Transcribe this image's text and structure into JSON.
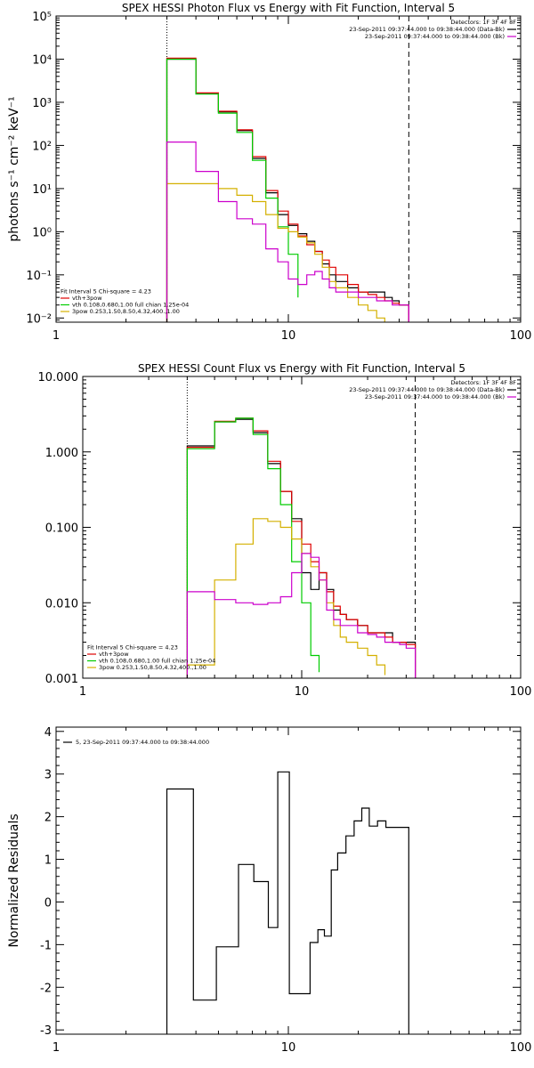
{
  "chart_data": [
    {
      "type": "line",
      "title": "SPEX HESSI Photon Flux vs Energy with Fit Function, Interval 5",
      "xlabel": "",
      "ylabel": "photons s⁻¹ cm⁻² keV⁻¹",
      "xscale": "log",
      "yscale": "log",
      "xlim": [
        1,
        100
      ],
      "ylim": [
        0.008,
        100000
      ],
      "xticks": [
        {
          "v": 1,
          "label": "1"
        },
        {
          "v": 10,
          "label": "10"
        },
        {
          "v": 100,
          "label": "100"
        }
      ],
      "yticks": [
        {
          "v": 0.01,
          "label": "10⁻²"
        },
        {
          "v": 0.1,
          "label": "10⁻¹"
        },
        {
          "v": 1,
          "label": "10⁰"
        },
        {
          "v": 10,
          "label": "10¹"
        },
        {
          "v": 100,
          "label": "10²"
        },
        {
          "v": 1000,
          "label": "10³"
        },
        {
          "v": 10000,
          "label": "10⁴"
        },
        {
          "v": 100000,
          "label": "10⁵"
        }
      ],
      "vlines": [
        {
          "x": 3.0,
          "style": "dotted",
          "color": "#000000"
        },
        {
          "x": 33.0,
          "style": "dashed",
          "color": "#000000"
        }
      ],
      "legend_topright": [
        {
          "text": "Detectors: 1F 3F 4F 8F",
          "color": "#000000"
        },
        {
          "text": "23-Sep-2011 09:37:44.000 to 09:38:44.000 (Data-Bk)",
          "color": "#000000"
        },
        {
          "text": "23-Sep-2011 09:37:44.000 to 09:38:44.000 (Bk)",
          "color": "#cc00cc"
        }
      ],
      "legend_bottomleft": [
        {
          "text": "Fit Interval 5   Chi-square = 4.23",
          "color": "#000000"
        },
        {
          "text": "vth+3pow",
          "color": "#e00000"
        },
        {
          "text": "vth 0.108,0.680,1.00  full chian 1.25e-04",
          "color": "#00cc00"
        },
        {
          "text": "3pow 0.253,1.50,8.50,4.32,400.,1.00",
          "color": "#d4b000"
        }
      ],
      "series": [
        {
          "name": "Data-Bk",
          "color": "#000000",
          "edges": [
            3.0,
            4.0,
            5.0,
            6.0,
            7.0,
            8.0,
            9.0,
            10.0,
            11.0,
            12.0,
            13.0,
            14.0,
            15.0,
            16.0,
            18.0,
            20.0,
            22.0,
            24.0,
            26.0,
            28.0,
            30.0,
            33.0
          ],
          "values": [
            10000,
            1600,
            600,
            220,
            50,
            8,
            2.5,
            1.4,
            0.9,
            0.6,
            0.35,
            0.18,
            0.1,
            0.07,
            0.05,
            0.04,
            0.04,
            0.04,
            0.03,
            0.025,
            0.02
          ]
        },
        {
          "name": "vth+3pow",
          "color": "#e00000",
          "edges": [
            3.0,
            4.0,
            5.0,
            6.0,
            7.0,
            8.0,
            9.0,
            10.0,
            11.0,
            12.0,
            13.0,
            14.0,
            15.0,
            16.0,
            18.0,
            20.0,
            22.0,
            24.0,
            26.0,
            28.0,
            30.0,
            33.0
          ],
          "values": [
            10500,
            1650,
            620,
            230,
            55,
            9,
            3,
            1.5,
            0.8,
            0.5,
            0.35,
            0.22,
            0.15,
            0.1,
            0.06,
            0.04,
            0.035,
            0.03,
            0.025,
            0.022,
            0.02
          ]
        },
        {
          "name": "vth",
          "color": "#00cc00",
          "edges": [
            3.0,
            4.0,
            5.0,
            6.0,
            7.0,
            8.0,
            9.0,
            10.0,
            11.0
          ],
          "values": [
            10000,
            1550,
            560,
            200,
            45,
            6,
            1.3,
            0.3,
            0.03
          ]
        },
        {
          "name": "3pow",
          "color": "#d4b000",
          "edges": [
            3.0,
            4.0,
            5.0,
            6.0,
            7.0,
            8.0,
            9.0,
            10.0,
            11.0,
            12.0,
            13.0,
            14.0,
            15.0,
            16.0,
            18.0,
            20.0,
            22.0,
            24.0,
            26.0
          ],
          "values": [
            13,
            13,
            10,
            7,
            5,
            2.5,
            1.2,
            1.0,
            0.75,
            0.55,
            0.3,
            0.15,
            0.07,
            0.05,
            0.03,
            0.02,
            0.015,
            0.01,
            0.007
          ]
        },
        {
          "name": "Bk",
          "color": "#cc00cc",
          "edges": [
            3.0,
            4.0,
            5.0,
            6.0,
            7.0,
            8.0,
            9.0,
            10.0,
            11.0,
            12.0,
            13.0,
            14.0,
            15.0,
            16.0,
            18.0,
            20.0,
            22.0,
            24.0,
            26.0,
            28.0,
            30.0,
            33.0
          ],
          "values": [
            120,
            25,
            5,
            2,
            1.5,
            0.4,
            0.2,
            0.08,
            0.06,
            0.1,
            0.12,
            0.08,
            0.05,
            0.04,
            0.04,
            0.03,
            0.03,
            0.025,
            0.025,
            0.02,
            0.02
          ]
        }
      ]
    },
    {
      "type": "line",
      "title": "SPEX HESSI Count Flux vs Energy with Fit Function, Interval 5",
      "xlabel": "",
      "ylabel": "",
      "xscale": "log",
      "yscale": "log",
      "xlim": [
        1,
        100
      ],
      "ylim": [
        0.001,
        10
      ],
      "xticks": [
        {
          "v": 1,
          "label": "1"
        },
        {
          "v": 10,
          "label": "10"
        },
        {
          "v": 100,
          "label": "100"
        }
      ],
      "yticks": [
        {
          "v": 0.001,
          "label": "0.001"
        },
        {
          "v": 0.01,
          "label": "0.010"
        },
        {
          "v": 0.1,
          "label": "0.100"
        },
        {
          "v": 1,
          "label": "1.000"
        },
        {
          "v": 10,
          "label": "10.000"
        }
      ],
      "vlines": [
        {
          "x": 3.0,
          "style": "dotted",
          "color": "#000000"
        },
        {
          "x": 33.0,
          "style": "dashed",
          "color": "#000000"
        }
      ],
      "legend_topright": [
        {
          "text": "Detectors: 1F 3F 4F 8F",
          "color": "#000000"
        },
        {
          "text": "23-Sep-2011 09:37:44.000 to 09:38:44.000 (Data-Bk)",
          "color": "#000000"
        },
        {
          "text": "23-Sep-2011 09:37:44.000 to 09:38:44.000 (Bk)",
          "color": "#cc00cc"
        }
      ],
      "legend_bottomleft": [
        {
          "text": "Fit Interval 5   Chi-square = 4.23",
          "color": "#000000"
        },
        {
          "text": "vth+3pow",
          "color": "#e00000"
        },
        {
          "text": "vth 0.108,0.680,1.00  full chian 1.25e-04",
          "color": "#00cc00"
        },
        {
          "text": "3pow 0.253,1.50,8.50,4.32,400.,1.00",
          "color": "#d4b000"
        }
      ],
      "series": [
        {
          "name": "Data-Bk",
          "color": "#000000",
          "edges": [
            3.0,
            4.0,
            5.0,
            6.0,
            7.0,
            8.0,
            9.0,
            10.0,
            11.0,
            12.0,
            13.0,
            14.0,
            15.0,
            16.0,
            18.0,
            20.0,
            22.0,
            24.0,
            26.0,
            28.0,
            30.0,
            33.0
          ],
          "values": [
            1.2,
            2.5,
            2.7,
            1.8,
            0.7,
            0.3,
            0.13,
            0.025,
            0.015,
            0.025,
            0.015,
            0.008,
            0.007,
            0.006,
            0.005,
            0.004,
            0.004,
            0.004,
            0.003,
            0.003,
            0.003
          ]
        },
        {
          "name": "vth+3pow",
          "color": "#e00000",
          "edges": [
            3.0,
            4.0,
            5.0,
            6.0,
            7.0,
            8.0,
            9.0,
            10.0,
            11.0,
            12.0,
            13.0,
            14.0,
            15.0,
            16.0,
            18.0,
            20.0,
            22.0,
            24.0,
            26.0,
            28.0,
            30.0,
            33.0
          ],
          "values": [
            1.15,
            2.55,
            2.8,
            1.9,
            0.75,
            0.3,
            0.12,
            0.06,
            0.035,
            0.025,
            0.014,
            0.009,
            0.007,
            0.006,
            0.005,
            0.004,
            0.004,
            0.0035,
            0.003,
            0.003,
            0.0028
          ]
        },
        {
          "name": "vth",
          "color": "#00cc00",
          "edges": [
            3.0,
            4.0,
            5.0,
            6.0,
            7.0,
            8.0,
            9.0,
            10.0,
            11.0,
            12.0
          ],
          "values": [
            1.1,
            2.5,
            2.8,
            1.7,
            0.6,
            0.2,
            0.035,
            0.01,
            0.002,
            0.0012
          ]
        },
        {
          "name": "3pow",
          "color": "#d4b000",
          "edges": [
            3.0,
            4.0,
            5.0,
            6.0,
            7.0,
            8.0,
            9.0,
            10.0,
            11.0,
            12.0,
            13.0,
            14.0,
            15.0,
            16.0,
            18.0,
            20.0,
            22.0,
            24.0
          ],
          "values": [
            0.0015,
            0.02,
            0.06,
            0.13,
            0.12,
            0.1,
            0.07,
            0.045,
            0.03,
            0.02,
            0.01,
            0.005,
            0.0035,
            0.003,
            0.0025,
            0.002,
            0.0015,
            0.0011
          ]
        },
        {
          "name": "Bk",
          "color": "#cc00cc",
          "edges": [
            3.0,
            4.0,
            5.0,
            6.0,
            7.0,
            8.0,
            9.0,
            10.0,
            11.0,
            12.0,
            13.0,
            14.0,
            15.0,
            16.0,
            18.0,
            20.0,
            22.0,
            24.0,
            26.0,
            28.0,
            30.0,
            33.0
          ],
          "values": [
            0.014,
            0.011,
            0.01,
            0.0095,
            0.01,
            0.012,
            0.025,
            0.045,
            0.04,
            0.02,
            0.008,
            0.006,
            0.005,
            0.005,
            0.004,
            0.0038,
            0.0035,
            0.003,
            0.003,
            0.0028,
            0.0025
          ]
        }
      ]
    },
    {
      "type": "line",
      "title": "",
      "xlabel": "",
      "ylabel": "Normalized Residuals",
      "xscale": "log",
      "yscale": "linear",
      "xlim": [
        1,
        100
      ],
      "ylim": [
        -3.1,
        4.1
      ],
      "xticks": [
        {
          "v": 1,
          "label": "1"
        },
        {
          "v": 10,
          "label": "10"
        },
        {
          "v": 100,
          "label": "100"
        }
      ],
      "yticks": [
        {
          "v": -3,
          "label": "-3"
        },
        {
          "v": -2,
          "label": "-2"
        },
        {
          "v": -1,
          "label": "-1"
        },
        {
          "v": 0,
          "label": "0"
        },
        {
          "v": 1,
          "label": "1"
        },
        {
          "v": 2,
          "label": "2"
        },
        {
          "v": 3,
          "label": "3"
        },
        {
          "v": 4,
          "label": "4"
        }
      ],
      "vlines": [],
      "legend_topleft": [
        {
          "text": "5, 23-Sep-2011 09:37:44.000 to 09:38:44.000",
          "color": "#000000"
        }
      ],
      "series": [
        {
          "name": "residuals",
          "color": "#000000",
          "edges": [
            3.0,
            3.9,
            4.9,
            6.1,
            7.1,
            8.2,
            9.0,
            10.1,
            12.4,
            13.4,
            14.3,
            15.3,
            16.3,
            17.7,
            19.2,
            20.7,
            22.3,
            24.2,
            26.3,
            28.3,
            30.4,
            33.0
          ],
          "values": [
            2.65,
            -2.3,
            -1.05,
            0.88,
            0.48,
            -0.6,
            3.05,
            -2.15,
            -0.95,
            -0.65,
            -0.8,
            0.75,
            1.15,
            1.55,
            1.9,
            2.2,
            1.78,
            1.9,
            1.75,
            1.75,
            1.75
          ],
          "close_to_bottom": true
        }
      ]
    }
  ]
}
